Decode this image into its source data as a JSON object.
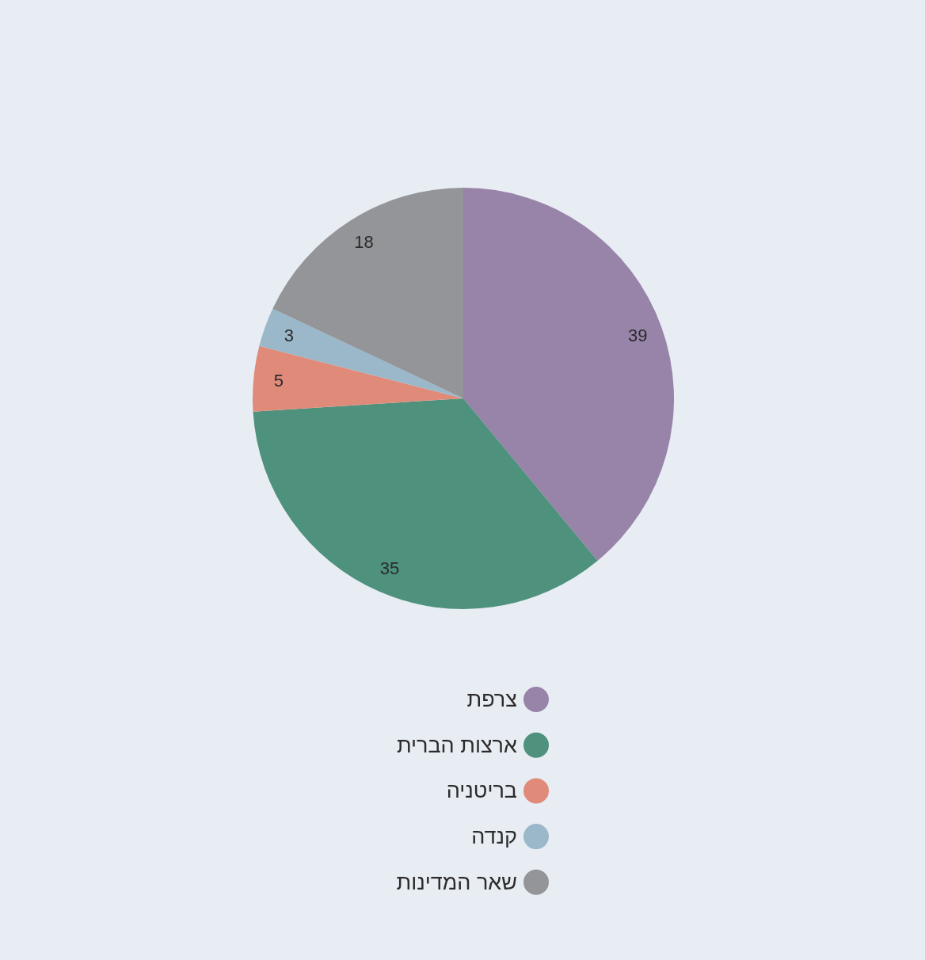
{
  "chart_data": {
    "type": "pie",
    "categories": [
      "צרפת",
      "ארצות הברית",
      "בריטניה",
      "קנדה",
      "שאר המדינות"
    ],
    "values": [
      39,
      35,
      5,
      3,
      18
    ],
    "colors": [
      "#9883a9",
      "#4e917d",
      "#e08b7a",
      "#9ab8c9",
      "#939598"
    ],
    "data_labels": true,
    "legend": "bottom"
  }
}
